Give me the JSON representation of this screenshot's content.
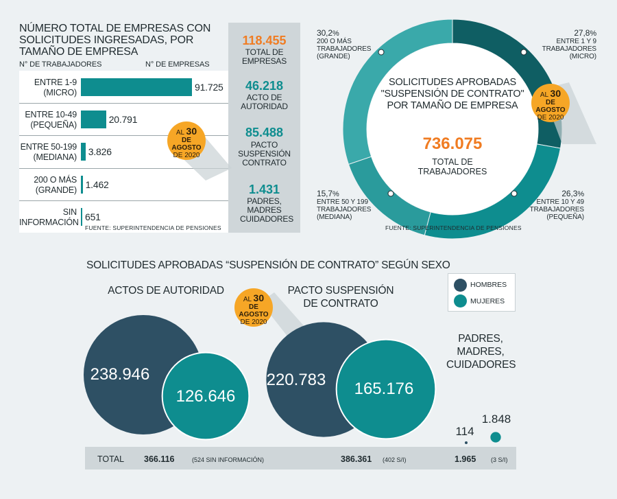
{
  "colors": {
    "teal": "#0e8d8f",
    "dark_teal": "#0f5e63",
    "mid_teal": "#2a9b9c",
    "light_teal": "#3aa9aa",
    "navy": "#2e5064",
    "orange": "#f07c22",
    "badge": "#f6a626"
  },
  "section1": {
    "title": "NÚMERO TOTAL DE EMPRESAS CON SOLICITUDES INGRESADAS, POR TAMAÑO DE EMPRESA",
    "col_left": "N° DE TRABAJADORES",
    "col_right": "N° DE EMPRESAS",
    "source": "FUENTE: SUPERINTENDENCIA DE PENSIONES",
    "badge": {
      "pre": "AL",
      "num": "30",
      "l2": "DE AGOSTO",
      "l3": "DE 2020"
    }
  },
  "summary": {
    "items": [
      {
        "num": "118.455",
        "label": "TOTAL DE EMPRESAS"
      },
      {
        "num": "46.218",
        "label": "ACTO DE AUTORIDAD"
      },
      {
        "num": "85.488",
        "label": "PACTO SUSPENSIÓN CONTRATO"
      },
      {
        "num": "1.431",
        "label": "PADRES, MADRES CUIDADORES"
      }
    ]
  },
  "section2": {
    "center_title": "SOLICITUDES APROBADAS \"SUSPENSIÓN DE CONTRATO\" POR TAMAÑO DE EMPRESA",
    "center_num": "736.075",
    "center_sub": "TOTAL DE TRABAJADORES",
    "source": "FUENTE: SUPERINTENDENCIA DE PENSIONES",
    "labels": [
      {
        "pct": "27,8",
        "unit": "%",
        "l1": "ENTRE 1 Y 9",
        "l2": "TRABAJADORES",
        "l3": "(MICRO)"
      },
      {
        "pct": "26,3",
        "unit": "%",
        "l1": "ENTRE 10 Y 49",
        "l2": "TRABAJADORES",
        "l3": "(PEQUEÑA)"
      },
      {
        "pct": "15,7",
        "unit": "%",
        "l1": "ENTRE 50 Y 199",
        "l2": "TRABAJADORES",
        "l3": "(MEDIANA)"
      },
      {
        "pct": "30,2",
        "unit": "%",
        "l1": "200 O MÁS",
        "l2": "TRABAJADORES",
        "l3": "(GRANDE)"
      }
    ]
  },
  "section3": {
    "title": "SOLICITUDES APROBADAS “SUSPENSIÓN DE CONTRATO” SEGÚN SEXO",
    "group1": "ACTOS DE AUTORIDAD",
    "group2": "PACTO SUSPENSIÓN DE CONTRATO",
    "group3": "PADRES, MADRES, CUIDADORES",
    "legend": {
      "men": "HOMBRES",
      "women": "MUJERES"
    },
    "totals": {
      "label": "TOTAL",
      "t1": "366.116",
      "t1_note": "(524 SIN INFORMACIÓN)",
      "t2": "386.361",
      "t2_note": "(402 S/I)",
      "t3": "1.965",
      "t3_note": "(3 S/I)"
    }
  },
  "chart_data": [
    {
      "type": "bar",
      "title": "NÚMERO TOTAL DE EMPRESAS CON SOLICITUDES INGRESADAS, POR TAMAÑO DE EMPRESA",
      "xlabel": "N° DE EMPRESAS",
      "ylabel": "N° DE TRABAJADORES",
      "categories": [
        "ENTRE 1-9 (MICRO)",
        "ENTRE 10-49 (PEQUEÑA)",
        "ENTRE 50-199 (MEDIANA)",
        "200 O MÁS (GRANDE)",
        "SIN INFORMACIÓN"
      ],
      "values": [
        91725,
        20791,
        3826,
        1462,
        651
      ],
      "value_labels": [
        "91.725",
        "20.791",
        "3.826",
        "1.462",
        "651"
      ],
      "rows": [
        {
          "l1": "ENTRE 1-9",
          "l2": "(MICRO)"
        },
        {
          "l1": "ENTRE 10-49",
          "l2": "(PEQUEÑA)"
        },
        {
          "l1": "ENTRE  50-199",
          "l2": "(MEDIANA)"
        },
        {
          "l1": "200 O MÁS",
          "l2": "(GRANDE)"
        },
        {
          "l1": "SIN",
          "l2": "INFORMACIÓN"
        }
      ]
    },
    {
      "type": "pie",
      "title": "SOLICITUDES APROBADAS \"SUSPENSIÓN DE CONTRATO\" POR TAMAÑO DE EMPRESA",
      "categories": [
        "ENTRE 1 Y 9 TRABAJADORES (MICRO)",
        "ENTRE 10 Y 49 TRABAJADORES (PEQUEÑA)",
        "ENTRE 50 Y 199 TRABAJADORES (MEDIANA)",
        "200 O MÁS TRABAJADORES (GRANDE)"
      ],
      "values": [
        27.8,
        26.3,
        15.7,
        30.2
      ]
    },
    {
      "type": "scatter",
      "title": "SOLICITUDES APROBADAS “SUSPENSIÓN DE CONTRATO” SEGÚN SEXO",
      "categories": [
        "ACTOS DE AUTORIDAD",
        "PACTO SUSPENSIÓN DE CONTRATO",
        "PADRES, MADRES, CUIDADORES"
      ],
      "series": [
        {
          "name": "HOMBRES",
          "values": [
            238946,
            220783,
            114
          ],
          "labels": [
            "238.946",
            "220.783",
            "114"
          ]
        },
        {
          "name": "MUJERES",
          "values": [
            126646,
            165176,
            1848
          ],
          "labels": [
            "126.646",
            "165.176",
            "1.848"
          ]
        }
      ]
    }
  ]
}
